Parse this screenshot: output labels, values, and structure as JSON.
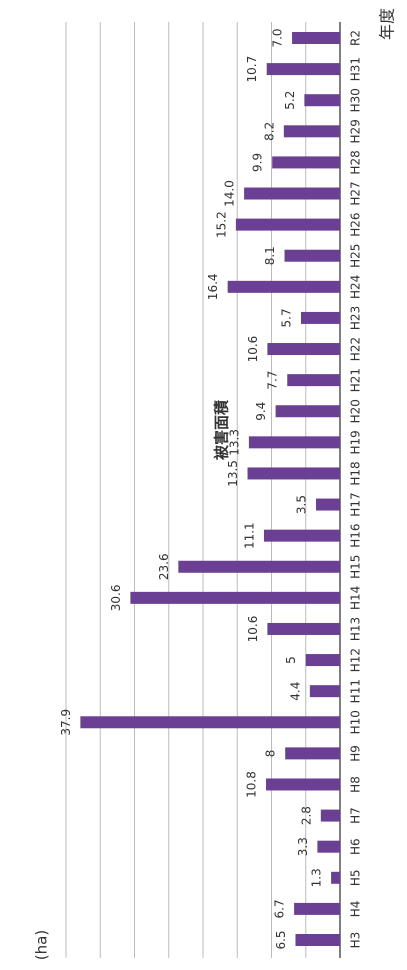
{
  "chart_data": {
    "type": "bar",
    "title": "被害面積",
    "y_label": "(ha)",
    "x_label": "年度",
    "categories": [
      "H3",
      "H4",
      "H5",
      "H6",
      "H7",
      "H8",
      "H9",
      "H10",
      "H11",
      "H12",
      "H13",
      "H14",
      "H15",
      "H16",
      "H17",
      "H18",
      "H19",
      "H20",
      "H21",
      "H22",
      "H23",
      "H24",
      "H25",
      "H26",
      "H27",
      "H28",
      "H29",
      "H30",
      "H31",
      "R2"
    ],
    "values": [
      6.5,
      6.7,
      1.3,
      3.3,
      2.8,
      10.8,
      8,
      37.9,
      4.4,
      5,
      10.6,
      30.6,
      23.6,
      11.1,
      3.5,
      13.5,
      13.3,
      9.4,
      7.7,
      10.6,
      5.7,
      16.4,
      8.1,
      15.2,
      14.0,
      9.9,
      8.2,
      5.2,
      10.7,
      7.0
    ],
    "value_labels": [
      "6.5",
      "6.7",
      "1.3",
      "3.3",
      "2.8",
      "10.8",
      "8",
      "37.9",
      "4.4",
      "5",
      "10.6",
      "30.6",
      "23.6",
      "11.1",
      "3.5",
      "13.5",
      "13.3",
      "9.4",
      "7.7",
      "10.6",
      "5.7",
      "16.4",
      "8.1",
      "15.2",
      "14.0",
      "9.9",
      "8.2",
      "5.2",
      "10.7",
      "7.0"
    ],
    "color": "#6b3f93",
    "ylim": [
      0,
      40
    ],
    "yticks": [
      0,
      5,
      10,
      15,
      20,
      25,
      30,
      35,
      40
    ],
    "grid": true
  }
}
